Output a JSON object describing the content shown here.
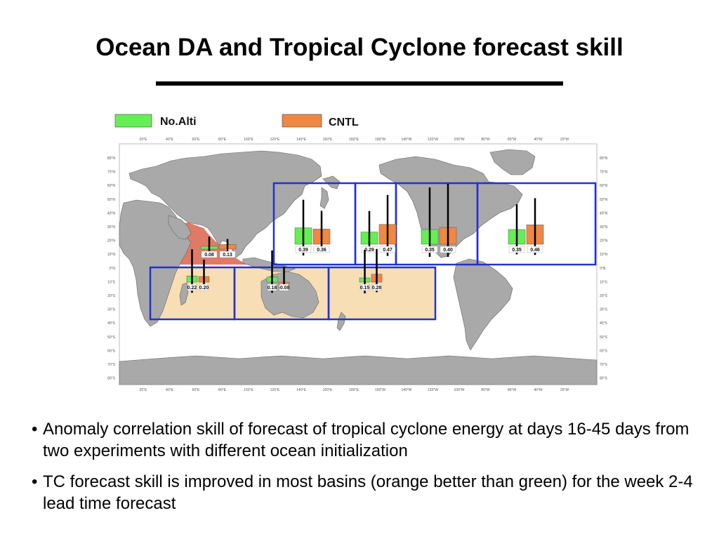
{
  "slide": {
    "title": "Ocean DA and Tropical Cyclone forecast skill"
  },
  "legend": {
    "items": [
      {
        "label": "No.Alti",
        "color": "#66ee55"
      },
      {
        "label": "CNTL",
        "color": "#ee8844"
      }
    ]
  },
  "map": {
    "lon_ticks": [
      "20°E",
      "40°E",
      "60°E",
      "80°E",
      "100°E",
      "120°E",
      "140°E",
      "160°E",
      "180°E",
      "160°W",
      "140°W",
      "120°W",
      "100°W",
      "80°W",
      "60°W",
      "40°W",
      "20°W"
    ],
    "lat_ticks": [
      "80°N",
      "70°N",
      "60°N",
      "50°N",
      "40°N",
      "30°N",
      "20°N",
      "10°N",
      "0°N",
      "10°S",
      "20°S",
      "30°S",
      "40°S",
      "50°S",
      "60°S",
      "70°S",
      "80°S"
    ],
    "colors": {
      "land": "#a9a9a9",
      "box_border": "#2233cc",
      "southern_fill": "#f8deb4",
      "north_indian_fill": "#e07a66",
      "no_alti": "#66ee55",
      "cntl": "#ee8844"
    }
  },
  "chart_data": {
    "type": "bar",
    "title": "",
    "series": [
      {
        "name": "No.Alti",
        "color": "#66ee55"
      },
      {
        "name": "CNTL",
        "color": "#ee8844"
      }
    ],
    "basins": [
      {
        "values": [
          0.08,
          0.13
        ],
        "labels": [
          "0.08",
          "0.13"
        ]
      },
      {
        "values": [
          0.39,
          0.36
        ],
        "labels": [
          "0.39",
          "0.36"
        ]
      },
      {
        "values": [
          0.29,
          0.47
        ],
        "labels": [
          "0.29",
          "0.47"
        ]
      },
      {
        "values": [
          0.35,
          0.4
        ],
        "labels": [
          "0.35",
          "0.40"
        ]
      },
      {
        "values": [
          0.35,
          0.46
        ],
        "labels": [
          "0.35",
          "0.46"
        ]
      },
      {
        "values": [
          0.22,
          0.2
        ],
        "labels": [
          "0.22",
          "0.20"
        ]
      },
      {
        "values": [
          0.18,
          -0.08
        ],
        "labels": [
          "0.18",
          "-0.08"
        ]
      },
      {
        "values": [
          0.15,
          0.28
        ],
        "labels": [
          "0.15",
          "0.28"
        ]
      }
    ]
  },
  "bullets": [
    "Anomaly correlation skill of forecast of tropical cyclone energy at days 16-45 days from two experiments with different ocean initialization",
    "TC forecast skill is improved in most basins (orange better than green) for the week 2-4 lead time forecast"
  ]
}
